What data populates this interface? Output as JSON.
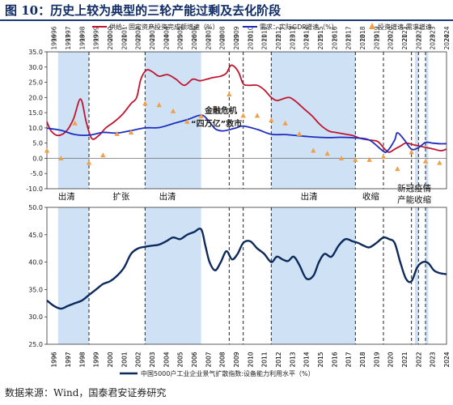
{
  "figure": {
    "title": "图 10：历史上较为典型的三轮产能过剩及去化阶段",
    "source": "数据来源：Wind，国泰君安证券研究"
  },
  "colors": {
    "supply": "#c0152f",
    "demand": "#1f2dbf",
    "diff": "#f0a04a",
    "utilization": "#0d2a5c",
    "shade": "#cfe2f5",
    "axis": "#333333"
  },
  "legend_top": {
    "supply": "供给：固定资产投资完成额增速（%）",
    "demand": "需求：实际GDP增速（%）",
    "diff": "投资增速-需求增速"
  },
  "legend_bottom": {
    "utilization": "中国5000户工业企业景气扩散指数:设备能力利用水平（%）"
  },
  "annotations": {
    "crisis": "金融危机",
    "stimulus": "“四万亿”救市"
  },
  "stage_labels": [
    {
      "text": "出清",
      "year": 1997.4
    },
    {
      "text": "扩张",
      "year": 2001.3
    },
    {
      "text": "出清",
      "year": 2004.6
    },
    {
      "text": "出清",
      "year": 2014.7
    },
    {
      "text": "收缩",
      "year": 2019.1
    },
    {
      "text": "新冠疫情",
      "year": 2022.2
    },
    {
      "text": "产能收缩",
      "year": 2022.2
    }
  ],
  "chart_data": [
    {
      "type": "line",
      "xlabel": "",
      "ylabel": "",
      "xlim": [
        1996,
        2024.5
      ],
      "ylim": [
        -10,
        35
      ],
      "yticks": [
        "-10.0",
        "-5.0",
        "0.0",
        "5.0",
        "10.0",
        "15.0",
        "20.0",
        "25.0",
        "30.0",
        "35.0"
      ],
      "xticks": [
        "1996",
        "1997",
        "1998",
        "1999",
        "2000",
        "2001",
        "2002",
        "2003",
        "2004",
        "2005",
        "2006",
        "2007",
        "2008",
        "2009",
        "2010",
        "2011",
        "2012",
        "2013",
        "2014",
        "2015",
        "2016",
        "2017",
        "2018",
        "2019",
        "2020",
        "2021",
        "2022",
        "2023",
        "2024"
      ],
      "shaded_periods": [
        [
          1996.8,
          1999.0
        ],
        [
          2003.0,
          2007.0
        ],
        [
          2012.0,
          2018.0
        ],
        [
          2022.25,
          2022.5
        ],
        [
          2023.0,
          2023.2
        ]
      ],
      "dashed_lines": [
        1999.0,
        2003.0,
        2009.0,
        2010.0,
        2012.0,
        2018.0,
        2020.0,
        2022.0,
        2022.5,
        2023.0
      ],
      "series": [
        {
          "name": "供给：固定资产投资完成额增速（%）",
          "x": [
            1996,
            1996.3,
            1996.8,
            1997.4,
            1997.9,
            1998.4,
            1998.8,
            1999.2,
            1999.7,
            2000.2,
            2000.8,
            2001.4,
            2002.0,
            2002.4,
            2002.7,
            2003.1,
            2003.5,
            2004.0,
            2004.6,
            2005.2,
            2005.8,
            2006.4,
            2006.9,
            2007.4,
            2007.8,
            2008.4,
            2008.8,
            2009.1,
            2009.4,
            2009.7,
            2010.0,
            2010.4,
            2011.0,
            2011.5,
            2012.0,
            2012.4,
            2012.8,
            2013.3,
            2013.8,
            2014.4,
            2014.9,
            2015.5,
            2016.1,
            2016.6,
            2017.2,
            2017.8,
            2018.4,
            2019.0,
            2019.6,
            2020.1,
            2020.4,
            2020.8,
            2021.2,
            2021.6,
            2022.1,
            2022.6,
            2023.1,
            2023.6,
            2024.1,
            2024.5
          ],
          "y": [
            12,
            9,
            7.5,
            9,
            13,
            19.5,
            12,
            6.5,
            7.5,
            10,
            12,
            14.5,
            18,
            20,
            26,
            29,
            28.5,
            27,
            27.5,
            26,
            24,
            26,
            25.5,
            26,
            26.5,
            27,
            28,
            30.5,
            30,
            28,
            24.5,
            24,
            24,
            22.5,
            20,
            19,
            19.5,
            20,
            18.5,
            16,
            14,
            11,
            9,
            8.5,
            8,
            7.5,
            6.5,
            6,
            5.5,
            3,
            2,
            3,
            4,
            5,
            4.5,
            4,
            3.5,
            3,
            2.5,
            3
          ]
        },
        {
          "name": "需求：实际GDP增速（%）",
          "x": [
            1996,
            1997,
            1998,
            1999,
            2000,
            2001,
            2002,
            2003,
            2004,
            2005,
            2006,
            2007,
            2007.5,
            2008,
            2008.5,
            2009,
            2009.5,
            2010,
            2011,
            2012,
            2013,
            2014,
            2015,
            2016,
            2017,
            2018,
            2019,
            2020,
            2020.3,
            2020.8,
            2021,
            2021.5,
            2022,
            2022.5,
            2023,
            2023.5,
            2024,
            2024.5
          ],
          "y": [
            9.9,
            9.2,
            7.8,
            7.6,
            8.5,
            8.3,
            9.1,
            10,
            10.1,
            11.4,
            12.7,
            14.2,
            12.5,
            9.7,
            9,
            9.4,
            10,
            10.6,
            9.5,
            7.9,
            7.8,
            7.4,
            7,
            6.8,
            6.9,
            6.7,
            6,
            2.3,
            2.5,
            6,
            8.4,
            6,
            3,
            3.5,
            5.2,
            5,
            4.8,
            4.8
          ]
        },
        {
          "name": "投资增速-需求增速",
          "x": [
            1996,
            1997,
            1998,
            1999,
            2000,
            2001,
            2002,
            2003,
            2004,
            2005,
            2006,
            2007,
            2008,
            2009,
            2010,
            2011,
            2012,
            2013,
            2014,
            2015,
            2016,
            2017,
            2018,
            2019,
            2020,
            2021,
            2022,
            2023,
            2024
          ],
          "y": [
            2.5,
            0,
            11.5,
            -1.5,
            1,
            8,
            8.5,
            18,
            17.5,
            15.5,
            12,
            13.8,
            16.5,
            21,
            14,
            14,
            12.5,
            11.5,
            8,
            2.5,
            1.5,
            0,
            -0.5,
            -0.5,
            0.5,
            -3.5,
            2,
            -1,
            -1.5
          ]
        }
      ]
    },
    {
      "type": "line",
      "xlabel": "",
      "ylabel": "",
      "xlim": [
        1996,
        2024.5
      ],
      "ylim": [
        25,
        50
      ],
      "yticks": [
        "25.0",
        "30.0",
        "35.0",
        "40.0",
        "45.0",
        "50.0"
      ],
      "xticks": [
        "1996",
        "1997",
        "1998",
        "1999",
        "2000",
        "2001",
        "2002",
        "2003",
        "2004",
        "2005",
        "2006",
        "2007",
        "2008",
        "2009",
        "2010",
        "2011",
        "2012",
        "2013",
        "2014",
        "2015",
        "2016",
        "2017",
        "2018",
        "2019",
        "2020",
        "2021",
        "2022",
        "2023",
        "2024"
      ],
      "shaded_periods": [
        [
          1996.8,
          1999.0
        ],
        [
          2003.0,
          2007.0
        ],
        [
          2012.0,
          2018.0
        ],
        [
          2022.25,
          2022.5
        ],
        [
          2023.0,
          2023.2
        ]
      ],
      "dashed_lines": [
        1999.0,
        2003.0,
        2009.0,
        2010.0,
        2012.0,
        2018.0,
        2020.0,
        2022.0,
        2022.5,
        2023.0
      ],
      "series": [
        {
          "name": "中国5000户工业企业景气扩散指数:设备能力利用水平（%）",
          "x": [
            1996,
            1996.5,
            1997,
            1997.5,
            1998,
            1998.5,
            1999,
            1999.5,
            2000,
            2000.5,
            2001,
            2001.5,
            2002,
            2002.5,
            2003,
            2003.5,
            2004,
            2004.5,
            2005,
            2005.5,
            2006,
            2006.5,
            2007,
            2007.3,
            2007.6,
            2008,
            2008.4,
            2008.8,
            2009.2,
            2009.6,
            2010,
            2010.5,
            2011,
            2011.5,
            2012,
            2012.4,
            2012.8,
            2013.2,
            2013.6,
            2014,
            2014.5,
            2015,
            2015.4,
            2015.8,
            2016.3,
            2016.8,
            2017.3,
            2017.8,
            2018.2,
            2018.6,
            2019,
            2019.5,
            2020,
            2020.4,
            2020.8,
            2021.2,
            2021.6,
            2022,
            2022.4,
            2022.8,
            2023.2,
            2023.6,
            2024,
            2024.5
          ],
          "y": [
            33,
            32,
            31.5,
            32,
            32.5,
            33,
            34,
            35,
            36,
            36.5,
            37.5,
            39,
            41.5,
            42.5,
            42.8,
            43,
            43.2,
            43.8,
            44.5,
            44.2,
            45,
            45.5,
            46,
            43,
            40,
            38.5,
            40,
            42,
            40.5,
            41.5,
            43.5,
            43.8,
            42.5,
            41.5,
            40,
            41,
            40.5,
            40.2,
            41,
            39.5,
            37,
            37.5,
            40,
            41.5,
            41,
            43,
            44.2,
            43.8,
            43.5,
            43,
            42.7,
            43.5,
            44.5,
            44.2,
            43.5,
            40,
            37,
            36.5,
            39,
            40,
            39.8,
            38.5,
            38,
            37.8
          ]
        }
      ]
    }
  ]
}
